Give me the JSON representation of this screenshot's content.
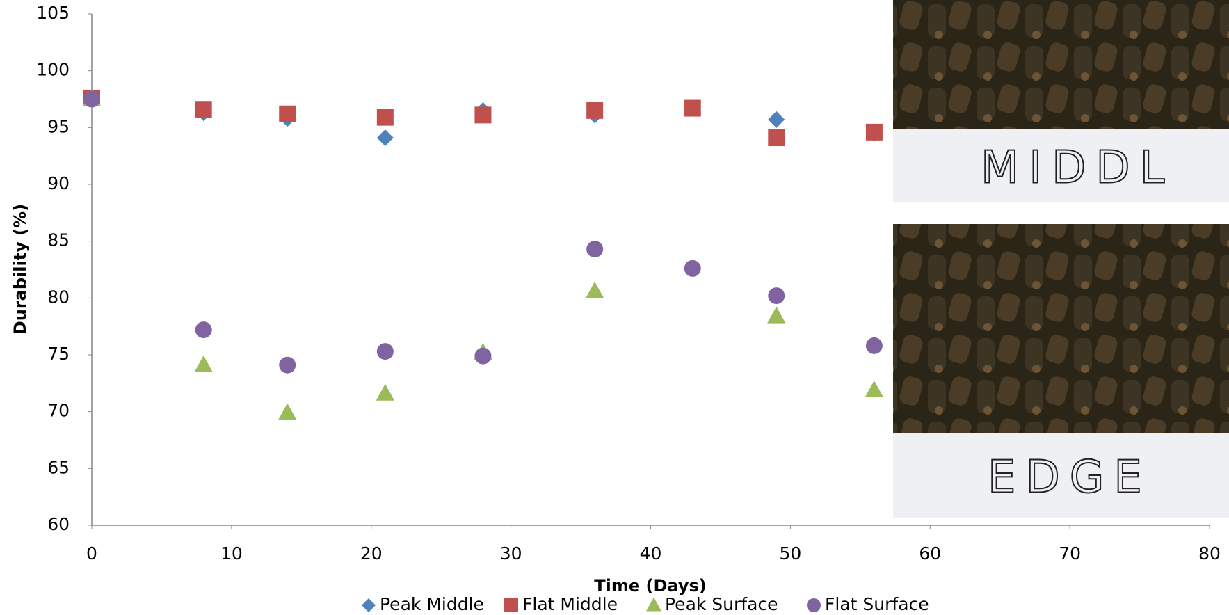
{
  "chart_data": {
    "type": "scatter",
    "x_label": "Time (Days)",
    "y_label": "Durability (%)",
    "x": [
      0,
      8,
      14,
      21,
      28,
      36,
      43,
      49,
      56
    ],
    "series": [
      {
        "name": "Peak Middle",
        "color": "#4f81bd",
        "marker": "diamond",
        "values": [
          97.5,
          96.3,
          95.8,
          94.1,
          96.5,
          96.1,
          null,
          95.7,
          94.5
        ]
      },
      {
        "name": "Flat Middle",
        "color": "#c0504d",
        "marker": "square",
        "values": [
          97.6,
          96.6,
          96.2,
          95.9,
          96.1,
          96.5,
          96.7,
          94.1,
          94.6
        ]
      },
      {
        "name": "Peak Surface",
        "color": "#9bbb59",
        "marker": "triangle",
        "values": [
          97.5,
          74.1,
          69.9,
          71.6,
          75.2,
          80.6,
          null,
          78.4,
          71.9
        ]
      },
      {
        "name": "Flat Surface",
        "color": "#8064a2",
        "marker": "circle",
        "values": [
          97.5,
          77.2,
          74.1,
          75.3,
          74.9,
          84.3,
          82.6,
          80.2,
          75.8
        ]
      }
    ],
    "xlim": [
      0,
      80
    ],
    "xticks": [
      0,
      10,
      20,
      30,
      40,
      50,
      60,
      70,
      80
    ],
    "ylim": [
      60,
      105
    ],
    "yticks": [
      60,
      65,
      70,
      75,
      80,
      85,
      90,
      95,
      100,
      105
    ],
    "grid": false,
    "legend": "bottom"
  },
  "images": [
    {
      "label": "MIDDL"
    },
    {
      "label": "EDGE"
    }
  ]
}
